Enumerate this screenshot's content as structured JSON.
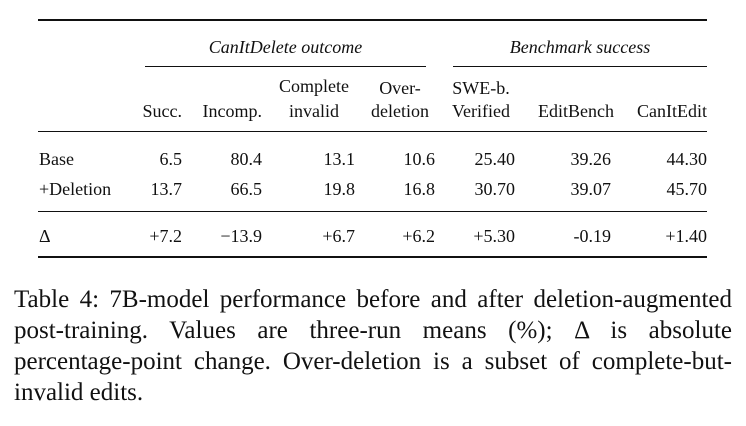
{
  "table": {
    "group_headers": [
      "CanItDelete outcome",
      "Benchmark success"
    ],
    "columns": {
      "c1": [
        "Succ."
      ],
      "c2": [
        "Incomp."
      ],
      "c3": [
        "Complete",
        "invalid"
      ],
      "c4": [
        "Over-",
        "deletion"
      ],
      "c5": [
        "SWE-b.",
        "Verified"
      ],
      "c6": [
        "EditBench"
      ],
      "c7": [
        "CanItEdit"
      ]
    },
    "rows": [
      {
        "label": "Base",
        "cells": [
          "6.5",
          "80.4",
          "13.1",
          "10.6",
          "25.40",
          "39.26",
          "44.30"
        ]
      },
      {
        "label": "+Deletion",
        "cells": [
          "13.7",
          "66.5",
          "19.8",
          "16.8",
          "30.70",
          "39.07",
          "45.70"
        ]
      },
      {
        "label": "Δ",
        "cells": [
          "+7.2",
          "−13.9",
          "+6.7",
          "+6.2",
          "+5.30",
          "-0.19",
          "+1.40"
        ]
      }
    ]
  },
  "caption": "Table 4: 7B-model performance before and after deletion-augmented post-training. Values are three-run means (%); Δ is absolute percentage-point change. Over-deletion is a subset of complete-but-invalid edits."
}
